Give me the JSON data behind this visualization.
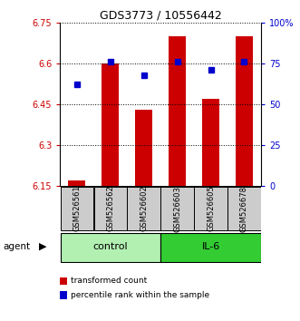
{
  "title": "GDS3773 / 10556442",
  "samples": [
    "GSM526561",
    "GSM526562",
    "GSM526602",
    "GSM526603",
    "GSM526605",
    "GSM526678"
  ],
  "red_values": [
    6.17,
    6.6,
    6.43,
    6.7,
    6.47,
    6.7
  ],
  "blue_values": [
    62,
    76,
    68,
    76,
    71,
    76
  ],
  "baseline": 6.15,
  "ylim_left": [
    6.15,
    6.75
  ],
  "ylim_right": [
    0,
    100
  ],
  "yticks_left": [
    6.15,
    6.3,
    6.45,
    6.6,
    6.75
  ],
  "ytick_labels_left": [
    "6.15",
    "6.3",
    "6.45",
    "6.6",
    "6.75"
  ],
  "yticks_right": [
    0,
    25,
    50,
    75,
    100
  ],
  "ytick_labels_right": [
    "0",
    "25",
    "50",
    "75",
    "100%"
  ],
  "groups": [
    {
      "label": "control",
      "start": 0,
      "end": 2,
      "color": "#b2f0b2"
    },
    {
      "label": "IL-6",
      "start": 3,
      "end": 5,
      "color": "#33cc33"
    }
  ],
  "bar_color": "#cc0000",
  "dot_color": "#0000cc",
  "bar_width": 0.5,
  "agent_label": "agent",
  "legend_items": [
    {
      "color": "#cc0000",
      "label": "transformed count"
    },
    {
      "color": "#0000cc",
      "label": "percentile rank within the sample"
    }
  ],
  "background_color": "#ffffff",
  "sample_box_color": "#cccccc"
}
